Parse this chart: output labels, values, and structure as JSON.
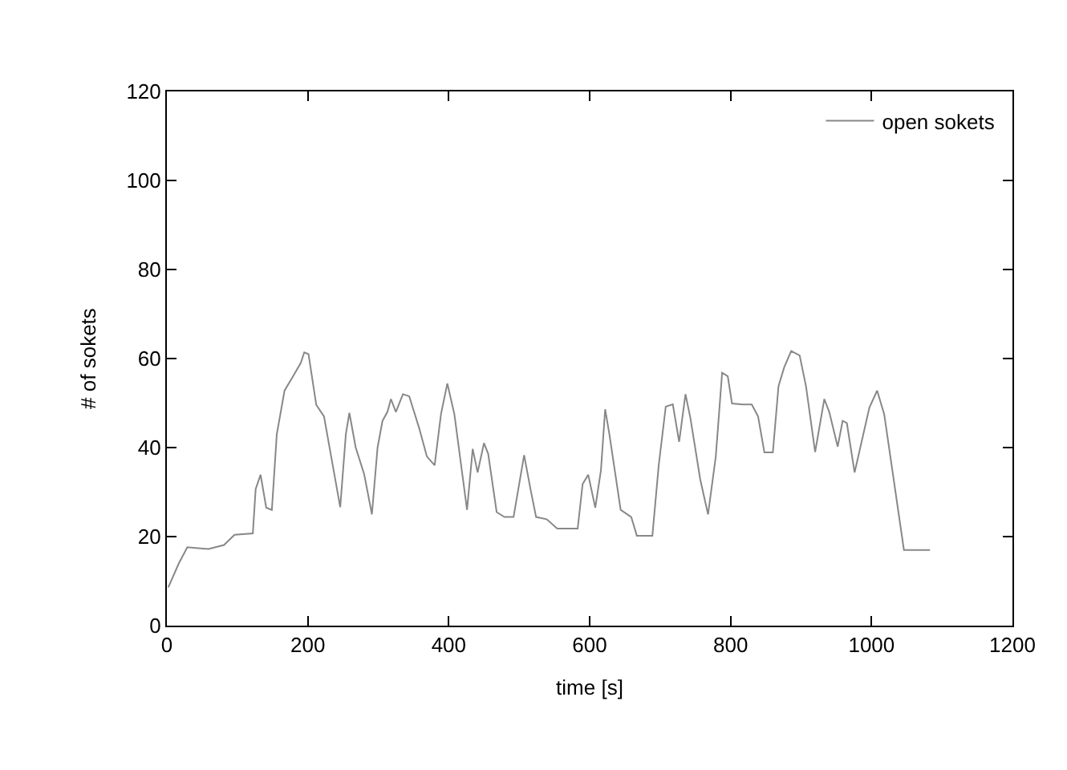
{
  "chart_data": {
    "type": "line",
    "xlabel": "time [s]",
    "ylabel": "# of sokets",
    "x": [
      2,
      17,
      29,
      59,
      81,
      96,
      122,
      126,
      133,
      141,
      149,
      156,
      167,
      179,
      190,
      195,
      201,
      212,
      223,
      246,
      254,
      259,
      268,
      280,
      291,
      299,
      306,
      313,
      318,
      325,
      335,
      344,
      358,
      369,
      380,
      389,
      398,
      408,
      426,
      434,
      441,
      450,
      456,
      468,
      479,
      492,
      507,
      516,
      524,
      539,
      554,
      583,
      590,
      598,
      608,
      616,
      622,
      628,
      644,
      659,
      667,
      689,
      698,
      708,
      718,
      727,
      736,
      743,
      757,
      768,
      779,
      788,
      796,
      802,
      817,
      830,
      839,
      848,
      860,
      868,
      876,
      886,
      898,
      907,
      920,
      933,
      940,
      952,
      959,
      965,
      976,
      997,
      1008,
      1018,
      1046,
      1083
    ],
    "series": [
      {
        "name": "open sokets",
        "color": "#888888",
        "values": [
          8.6,
          14,
          17.6,
          17.2,
          18.1,
          20.4,
          20.7,
          30.7,
          33.9,
          26.5,
          26,
          43,
          52.8,
          56,
          59,
          61.4,
          61,
          49.6,
          47,
          26.6,
          43,
          47.8,
          40,
          34,
          25,
          40,
          46,
          48,
          50.9,
          48,
          52,
          51.5,
          44.4,
          38,
          36,
          47.5,
          54.4,
          47.5,
          26,
          39.7,
          34.4,
          41,
          38.6,
          25.5,
          24.4,
          24.4,
          38.3,
          30.7,
          24.4,
          23.9,
          21.8,
          21.8,
          31.8,
          33.9,
          26.5,
          34.9,
          48.6,
          43,
          26,
          24.4,
          20.2,
          20.2,
          36,
          49.2,
          49.7,
          41.3,
          52,
          46.6,
          32.8,
          25,
          38,
          56.8,
          56,
          49.9,
          49.7,
          49.7,
          47,
          38.9,
          38.9,
          53.8,
          58,
          61.7,
          60.7,
          53.8,
          39,
          50.9,
          48,
          40.2,
          46,
          45.5,
          34.4,
          49,
          52.8,
          47.5,
          17,
          17
        ]
      }
    ],
    "xlim": [
      0,
      1200
    ],
    "xticks": [
      0,
      200,
      400,
      600,
      800,
      1000,
      1200
    ],
    "ylim": [
      0,
      120
    ],
    "yticks": [
      0,
      20,
      40,
      60,
      80,
      100,
      120
    ],
    "legend": "top right",
    "marker": "none",
    "line_style": "solid"
  }
}
